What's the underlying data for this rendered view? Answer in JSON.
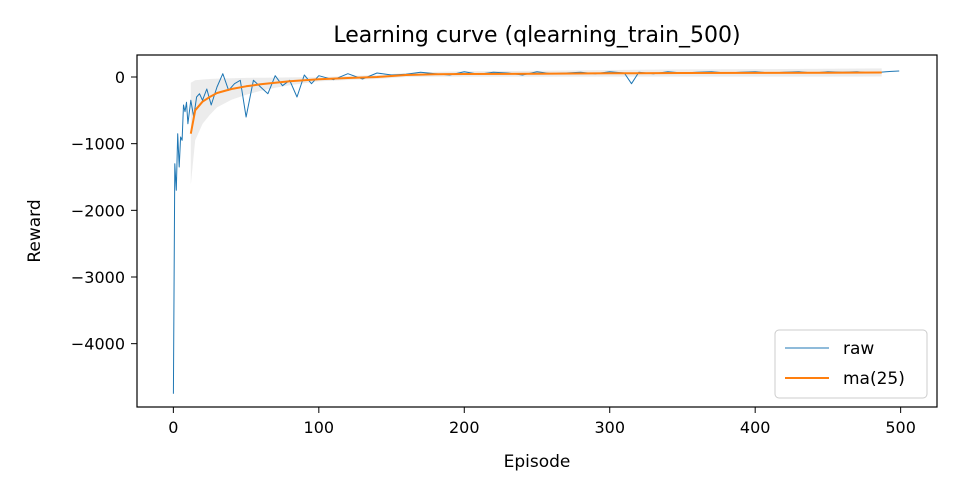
{
  "chart_data": {
    "type": "line",
    "title": "Learning curve (qlearning_train_500)",
    "xlabel": "Episode",
    "ylabel": "Reward",
    "xlim": [
      -25,
      525
    ],
    "ylim": [
      -4950,
      330
    ],
    "xticks": [
      0,
      100,
      200,
      300,
      400,
      500
    ],
    "xtick_labels": [
      "0",
      "100",
      "200",
      "300",
      "400",
      "500"
    ],
    "yticks": [
      0,
      -1000,
      -2000,
      -3000,
      -4000
    ],
    "ytick_labels": [
      "0",
      "−1000",
      "−2000",
      "−3000",
      "−4000"
    ],
    "grid": false,
    "legend": {
      "placement": "lower-right"
    },
    "colors": {
      "raw": "#1f77b4",
      "ma": "#ff7f0e",
      "band": "#c8c8c8"
    },
    "series": [
      {
        "name": "raw",
        "x": [
          0,
          1,
          2,
          3,
          4,
          5,
          6,
          7,
          8,
          9,
          10,
          12,
          14,
          16,
          18,
          20,
          23,
          26,
          30,
          34,
          38,
          42,
          46,
          50,
          55,
          60,
          65,
          70,
          75,
          80,
          85,
          90,
          95,
          100,
          110,
          120,
          130,
          140,
          150,
          160,
          170,
          180,
          190,
          200,
          210,
          220,
          230,
          240,
          250,
          260,
          270,
          280,
          290,
          300,
          310,
          315,
          320,
          330,
          340,
          350,
          360,
          370,
          380,
          390,
          400,
          410,
          420,
          430,
          440,
          450,
          460,
          470,
          480,
          490,
          499
        ],
        "values": [
          -4750,
          -1300,
          -1700,
          -850,
          -1350,
          -900,
          -950,
          -420,
          -520,
          -380,
          -700,
          -350,
          -600,
          -300,
          -250,
          -350,
          -180,
          -420,
          -150,
          50,
          -200,
          -100,
          -50,
          -600,
          -50,
          -150,
          -250,
          20,
          -130,
          -50,
          -300,
          30,
          -100,
          20,
          -40,
          50,
          -30,
          60,
          30,
          40,
          70,
          50,
          30,
          80,
          40,
          70,
          60,
          30,
          80,
          50,
          60,
          70,
          50,
          80,
          60,
          -100,
          70,
          50,
          80,
          60,
          70,
          80,
          60,
          70,
          80,
          60,
          70,
          80,
          60,
          80,
          70,
          80,
          60,
          80,
          90
        ]
      },
      {
        "name": "ma(25)",
        "x": [
          12,
          15,
          20,
          25,
          30,
          40,
          50,
          60,
          70,
          80,
          90,
          100,
          120,
          140,
          160,
          180,
          200,
          250,
          300,
          350,
          400,
          450,
          487
        ],
        "values": [
          -850,
          -500,
          -370,
          -300,
          -240,
          -180,
          -140,
          -110,
          -85,
          -65,
          -50,
          -35,
          -15,
          0,
          30,
          40,
          45,
          50,
          55,
          60,
          62,
          65,
          68
        ]
      }
    ]
  }
}
